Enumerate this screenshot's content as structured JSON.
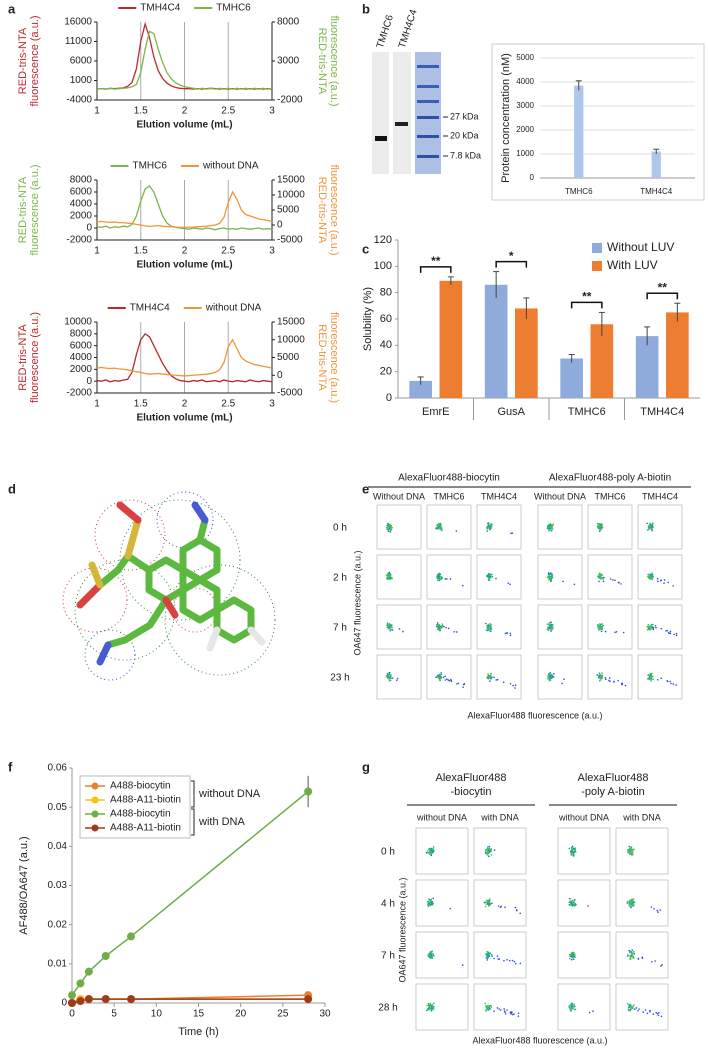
{
  "panel_labels": [
    "a",
    "b",
    "c",
    "d",
    "e",
    "f",
    "g"
  ],
  "gel": {
    "lanes": [
      "TMHC6",
      "TMH4C4"
    ],
    "markers": [
      "27 kDa",
      "20 kDa",
      "7.8 kDa"
    ]
  },
  "flow_e": {
    "groups": [
      "AlexaFluor488-biocytin",
      "AlexaFluor488-poly A-biotin"
    ],
    "columns": [
      "Without DNA",
      "TMHC6",
      "TMH4C4"
    ],
    "rows": [
      "0 h",
      "2 h",
      "7 h",
      "23 h"
    ],
    "ylabel": "OA647 fluorescence (a.u.)",
    "xlabel": "AlexaFluor488 fluorescence (a.u.)"
  },
  "flow_g": {
    "groups": [
      [
        "AlexaFluor488",
        "-biocytin"
      ],
      [
        "AlexaFluor488",
        "-poly A-biotin"
      ]
    ],
    "columns": [
      "without DNA",
      "with DNA"
    ],
    "rows": [
      "0 h",
      "4 h",
      "7 h",
      "28 h"
    ],
    "ylabel": "OA647 fluorescence (a.u.)",
    "xlabel": "AlexaFluor488 fluorescence (a.u.)"
  },
  "chart_data": [
    {
      "type": "line",
      "xlabel": "Elution volume (mL)",
      "ylabel": [
        "RED-tris-NTA",
        "fluorescence (a.u.)"
      ],
      "y2label": [
        "RED-tris-NTA",
        "fluorescence (a.u.)"
      ],
      "legend": "top",
      "grid": "x",
      "x": [
        1,
        1.05,
        1.1,
        1.15,
        1.2,
        1.25,
        1.3,
        1.35,
        1.4,
        1.45,
        1.5,
        1.55,
        1.6,
        1.65,
        1.7,
        1.75,
        1.8,
        1.85,
        1.9,
        1.95,
        2,
        2.05,
        2.1,
        2.15,
        2.2,
        2.25,
        2.3,
        2.35,
        2.4,
        2.45,
        2.5,
        2.55,
        2.6,
        2.65,
        2.7,
        2.75,
        2.8,
        2.85,
        2.9,
        2.95,
        3
      ],
      "xlim": [
        1,
        3
      ],
      "xticks": [
        1,
        1.5,
        2,
        2.5,
        3
      ],
      "ylim": [
        -4000,
        16000
      ],
      "yticks": [
        -4000,
        1000,
        6000,
        11000,
        16000
      ],
      "y2lim": [
        -2000,
        8000
      ],
      "y2ticks": [
        -2000,
        3000,
        8000
      ],
      "series": [
        {
          "name": "TMH4C4",
          "color": "#c0282d",
          "values": [
            -1200,
            -1100,
            -1200,
            -1000,
            -1100,
            -1000,
            -900,
            -500,
            500,
            4000,
            11000,
            15500,
            12000,
            7000,
            3500,
            1500,
            300,
            -400,
            -800,
            -1000,
            -1100,
            -1100,
            -1200,
            -1100,
            -1200,
            -1100,
            -1000,
            -1100,
            -1200,
            -1100,
            -1200,
            -1100,
            -1200,
            -1100,
            -1200,
            -1100,
            -1200,
            -1100,
            -1200,
            -1100,
            -1200
          ]
        },
        {
          "name": "TMHC6",
          "color": "#7ab648",
          "axis": "y2",
          "values": [
            -600,
            -550,
            -600,
            -500,
            -600,
            -550,
            -500,
            -450,
            -300,
            0,
            1500,
            4500,
            6800,
            6500,
            4500,
            2800,
            1500,
            700,
            200,
            -100,
            -300,
            -400,
            -500,
            -600,
            -500,
            -600,
            -500,
            -600,
            -500,
            -600,
            -500,
            -600,
            -500,
            -600,
            -500,
            -600,
            -500,
            -600,
            -500,
            -600,
            -500
          ]
        }
      ]
    },
    {
      "type": "line",
      "xlabel": "Elution volume (mL)",
      "ylabel": [
        "RED-tris-NTA",
        "fluorescence (a.u.)"
      ],
      "y2label": [
        "RED-tris-NTA",
        "fluorescence (a.u.)"
      ],
      "legend": "top",
      "grid": "x",
      "x": [
        1,
        1.05,
        1.1,
        1.15,
        1.2,
        1.25,
        1.3,
        1.35,
        1.4,
        1.45,
        1.5,
        1.55,
        1.6,
        1.65,
        1.7,
        1.75,
        1.8,
        1.85,
        1.9,
        1.95,
        2,
        2.05,
        2.1,
        2.15,
        2.2,
        2.25,
        2.3,
        2.35,
        2.4,
        2.45,
        2.5,
        2.55,
        2.6,
        2.65,
        2.7,
        2.75,
        2.8,
        2.85,
        2.9,
        2.95,
        3
      ],
      "xlim": [
        1,
        3
      ],
      "xticks": [
        1,
        1.5,
        2,
        2.5,
        3
      ],
      "ylim": [
        -2000,
        8000
      ],
      "yticks": [
        -2000,
        0,
        2000,
        4000,
        6000,
        8000
      ],
      "y2lim": [
        -5000,
        15000
      ],
      "y2ticks": [
        -5000,
        0,
        5000,
        10000,
        15000
      ],
      "series": [
        {
          "name": "TMHC6",
          "color": "#7ab648",
          "values": [
            200,
            100,
            300,
            0,
            200,
            100,
            300,
            200,
            600,
            2000,
            4500,
            6500,
            7000,
            6000,
            4000,
            2000,
            800,
            300,
            100,
            0,
            -100,
            -200,
            0,
            -100,
            -200,
            0,
            -100,
            -300,
            -100,
            0,
            -200,
            -100,
            -200,
            0,
            -100,
            -200,
            -100,
            0,
            -200,
            -100,
            -200
          ]
        },
        {
          "name": "without DNA",
          "color": "#f0943a",
          "axis": "y2",
          "values": [
            1000,
            1200,
            1000,
            900,
            1000,
            800,
            800,
            600,
            500,
            200,
            0,
            -300,
            -500,
            -300,
            -200,
            -400,
            -500,
            -600,
            -700,
            -800,
            -800,
            -700,
            -700,
            -600,
            -500,
            -400,
            -200,
            0,
            500,
            2500,
            7500,
            11000,
            8500,
            5000,
            3500,
            3000,
            2500,
            2000,
            1800,
            1500,
            1200
          ]
        }
      ]
    },
    {
      "type": "line",
      "xlabel": "Elution volume (mL)",
      "ylabel": [
        "RED-tris-NTA",
        "fluorescence (a.u.)"
      ],
      "y2label": [
        "RED-tris-NTA",
        "fluorescence (a.u.)"
      ],
      "legend": "top",
      "grid": "x",
      "x": [
        1,
        1.05,
        1.1,
        1.15,
        1.2,
        1.25,
        1.3,
        1.35,
        1.4,
        1.45,
        1.5,
        1.55,
        1.6,
        1.65,
        1.7,
        1.75,
        1.8,
        1.85,
        1.9,
        1.95,
        2,
        2.05,
        2.1,
        2.15,
        2.2,
        2.25,
        2.3,
        2.35,
        2.4,
        2.45,
        2.5,
        2.55,
        2.6,
        2.65,
        2.7,
        2.75,
        2.8,
        2.85,
        2.9,
        2.95,
        3
      ],
      "xlim": [
        1,
        3
      ],
      "xticks": [
        1,
        1.5,
        2,
        2.5,
        3
      ],
      "ylim": [
        -2000,
        10000
      ],
      "yticks": [
        -2000,
        0,
        2000,
        4000,
        6000,
        8000,
        10000
      ],
      "y2lim": [
        -5000,
        15000
      ],
      "y2ticks": [
        -5000,
        0,
        5000,
        10000,
        15000
      ],
      "series": [
        {
          "name": "TMH4C4",
          "color": "#b8282d",
          "values": [
            100,
            0,
            200,
            -100,
            100,
            0,
            200,
            300,
            1500,
            4500,
            7000,
            8000,
            7500,
            6000,
            4500,
            3000,
            1800,
            900,
            400,
            100,
            0,
            -100,
            100,
            0,
            200,
            -100,
            0,
            100,
            -100,
            200,
            0,
            -100,
            100,
            0,
            -100,
            200,
            0,
            -100,
            100,
            0,
            -100
          ]
        },
        {
          "name": "without DNA",
          "color": "#f0943a",
          "axis": "y2",
          "values": [
            2000,
            2200,
            2000,
            1900,
            2000,
            1800,
            1700,
            1500,
            1300,
            1000,
            800,
            500,
            300,
            400,
            500,
            300,
            200,
            100,
            0,
            -100,
            -200,
            -100,
            0,
            100,
            200,
            300,
            500,
            800,
            1500,
            3500,
            8000,
            10000,
            7500,
            5000,
            4000,
            3500,
            3000,
            2800,
            2500,
            2300,
            2000
          ]
        }
      ]
    },
    {
      "type": "bar",
      "ylabel": "Protein concentration (nM)",
      "grid": "y",
      "categories": [
        "TMHC6",
        "TMH4C4"
      ],
      "values": [
        3850,
        1100
      ],
      "errors": [
        200,
        100
      ],
      "color": "#aec6ea",
      "ylim": [
        0,
        5000
      ],
      "yticks": [
        0,
        1000,
        2000,
        3000,
        4000,
        5000
      ]
    },
    {
      "type": "bar",
      "ylabel": "Solubility (%)",
      "legend": "upper right",
      "categories": [
        "EmrE",
        "GusA",
        "TMHC6",
        "TMH4C4"
      ],
      "ylim": [
        0,
        120
      ],
      "yticks": [
        0,
        20,
        40,
        60,
        80,
        100,
        120
      ],
      "significance": [
        "**",
        "*",
        "**",
        "**"
      ],
      "series": [
        {
          "name": "Without LUV",
          "color": "#8fabdc",
          "values": [
            13,
            86,
            30,
            47
          ],
          "errors": [
            3,
            10,
            3,
            7
          ]
        },
        {
          "name": "With LUV",
          "color": "#ed7d31",
          "values": [
            89,
            68,
            56,
            65
          ],
          "errors": [
            3,
            8,
            9,
            7
          ]
        }
      ]
    },
    {
      "type": "line",
      "markers": true,
      "xlabel": "Time (h)",
      "ylabel": "AF488/OA647 (a.u.)",
      "legend": "upper left",
      "legend_notes": [
        "without DNA",
        "with DNA"
      ],
      "x": [
        0,
        1,
        2,
        4,
        7,
        28
      ],
      "xlim": [
        0,
        30
      ],
      "xticks": [
        0,
        5,
        10,
        15,
        20,
        25,
        30
      ],
      "ylim": [
        0,
        0.06
      ],
      "yticks": [
        0,
        0.01,
        0.02,
        0.03,
        0.04,
        0.05,
        0.06
      ],
      "series": [
        {
          "name": "A488-biocytin",
          "color": "#ed7d31",
          "values": [
            0,
            0.001,
            0.001,
            0.001,
            0.001,
            0.002
          ]
        },
        {
          "name": "A488-A11-biotin",
          "color": "#ffc000",
          "values": [
            0,
            0.001,
            0.001,
            0.001,
            0.001,
            0.001
          ]
        },
        {
          "name": "A488-biocytin",
          "color": "#70ad47",
          "values": [
            0.002,
            0.005,
            0.008,
            0.012,
            0.017,
            0.054
          ],
          "errors": [
            0,
            0,
            0,
            0,
            0,
            0.004
          ]
        },
        {
          "name": "A488-A11-biotin",
          "color": "#9e3b1b",
          "values": [
            0,
            0.0005,
            0.001,
            0.001,
            0.001,
            0.001
          ]
        }
      ]
    }
  ]
}
